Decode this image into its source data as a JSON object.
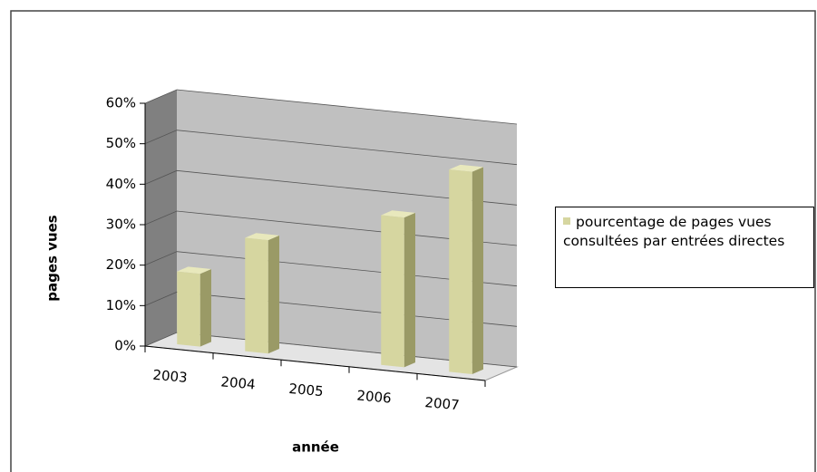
{
  "chart_data": {
    "type": "bar3d",
    "categories": [
      "2003",
      "2004",
      "2005",
      "2006",
      "2007"
    ],
    "series": [
      {
        "name": "pourcentage de pages vues consultées par entrées directes",
        "color": "#d6d6a0",
        "values": [
          18,
          28,
          null,
          37,
          50
        ]
      }
    ],
    "ylim": [
      0,
      60
    ],
    "yticks": [
      {
        "value": 0,
        "label": "0%"
      },
      {
        "value": 10,
        "label": "10%"
      },
      {
        "value": 20,
        "label": "20%"
      },
      {
        "value": 30,
        "label": "30%"
      },
      {
        "value": 40,
        "label": "40%"
      },
      {
        "value": 50,
        "label": "50%"
      },
      {
        "value": 60,
        "label": "60%"
      }
    ],
    "ylabel": "pages vues",
    "xlabel": "année",
    "grid": true,
    "legend": "right"
  }
}
